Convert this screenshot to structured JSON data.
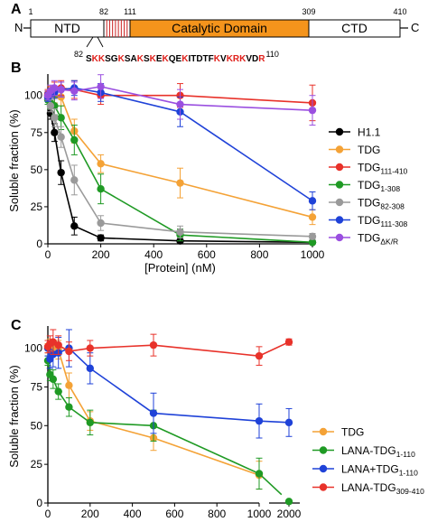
{
  "panel_a": {
    "label": "A",
    "n_term": "N",
    "c_term": "C",
    "positions": [
      "1",
      "82",
      "111",
      "309",
      "410"
    ],
    "domains": [
      {
        "name": "NTD",
        "start": 1,
        "end": 82,
        "color": "#ffffff"
      },
      {
        "name": "",
        "start": 82,
        "end": 111,
        "color": "#ffffff",
        "hatch_color": "#cc2222"
      },
      {
        "name": "Catalytic Domain",
        "start": 111,
        "end": 309,
        "color": "#f4941c"
      },
      {
        "name": "CTD",
        "start": 309,
        "end": 410,
        "color": "#ffffff"
      }
    ],
    "sequence_start": "82",
    "sequence_end": "110",
    "sequence": [
      {
        "t": "S",
        "c": "#000000"
      },
      {
        "t": "KK",
        "c": "#e0201b"
      },
      {
        "t": "SG",
        "c": "#000000"
      },
      {
        "t": "K",
        "c": "#e0201b"
      },
      {
        "t": "SA",
        "c": "#000000"
      },
      {
        "t": "K",
        "c": "#e0201b"
      },
      {
        "t": "S",
        "c": "#000000"
      },
      {
        "t": "K",
        "c": "#e0201b"
      },
      {
        "t": "E",
        "c": "#000000"
      },
      {
        "t": "K",
        "c": "#e0201b"
      },
      {
        "t": "QE",
        "c": "#000000"
      },
      {
        "t": "K",
        "c": "#e0201b"
      },
      {
        "t": "ITDTF",
        "c": "#000000"
      },
      {
        "t": "K",
        "c": "#e0201b"
      },
      {
        "t": "V",
        "c": "#000000"
      },
      {
        "t": "KRK",
        "c": "#e0201b"
      },
      {
        "t": "VD",
        "c": "#000000"
      },
      {
        "t": "R",
        "c": "#e0201b"
      }
    ]
  },
  "chart_data": [
    {
      "panel": "B",
      "type": "line",
      "xlabel": "[Protein] (nM)",
      "ylabel": "Soluble fraction (%)",
      "xlim": [
        0,
        1000
      ],
      "ylim": [
        0,
        112
      ],
      "xticks": [
        0,
        200,
        400,
        600,
        800,
        1000
      ],
      "yticks": [
        0,
        25,
        50,
        75,
        100
      ],
      "legend_position": "right",
      "series": [
        {
          "name": "H1.1",
          "color": "#000000",
          "x": [
            0,
            10,
            25,
            50,
            100,
            200,
            500,
            1000
          ],
          "y": [
            100,
            88,
            75,
            48,
            12,
            4,
            2,
            1
          ],
          "err": [
            3,
            4,
            6,
            8,
            6,
            2,
            2,
            1
          ]
        },
        {
          "name": "TDG",
          "color": "#f4a236",
          "x": [
            0,
            10,
            25,
            50,
            100,
            200,
            500,
            1000
          ],
          "y": [
            100,
            102,
            100,
            99,
            76,
            54,
            41,
            18
          ],
          "err": [
            3,
            4,
            5,
            6,
            8,
            6,
            10,
            5
          ]
        },
        {
          "name": "TDG",
          "sub": "111-410",
          "color": "#e8322a",
          "x": [
            0,
            10,
            25,
            50,
            100,
            200,
            500,
            1000
          ],
          "y": [
            101,
            102,
            104,
            105,
            104,
            100,
            100,
            95
          ],
          "err": [
            3,
            4,
            5,
            5,
            6,
            6,
            8,
            12
          ]
        },
        {
          "name": "TDG",
          "sub": "1-308",
          "color": "#1f9a24",
          "x": [
            0,
            10,
            25,
            50,
            100,
            200,
            500,
            1000
          ],
          "y": [
            97,
            95,
            93,
            85,
            70,
            37,
            6,
            1
          ],
          "err": [
            3,
            4,
            6,
            8,
            10,
            10,
            4,
            1
          ]
        },
        {
          "name": "TDG",
          "sub": "82-308",
          "color": "#9a9a9a",
          "x": [
            0,
            10,
            25,
            50,
            100,
            200,
            500,
            1000
          ],
          "y": [
            99,
            93,
            85,
            72,
            43,
            14,
            8,
            5
          ],
          "err": [
            3,
            4,
            6,
            7,
            10,
            5,
            4,
            2
          ]
        },
        {
          "name": "TDG",
          "sub": "111-308",
          "color": "#1f42d8",
          "x": [
            0,
            10,
            25,
            50,
            100,
            200,
            500,
            1000
          ],
          "y": [
            99,
            101,
            102,
            104,
            105,
            102,
            89,
            29
          ],
          "err": [
            3,
            3,
            4,
            5,
            5,
            6,
            10,
            6
          ]
        },
        {
          "name": "TDG",
          "sub": "ΔK/R",
          "color": "#9a4fe0",
          "x": [
            0,
            10,
            25,
            50,
            100,
            200,
            500,
            1000
          ],
          "y": [
            100,
            103,
            105,
            104,
            103,
            106,
            94,
            90
          ],
          "err": [
            3,
            4,
            5,
            5,
            6,
            8,
            10,
            10
          ]
        }
      ]
    },
    {
      "panel": "C",
      "type": "line",
      "xlabel": "[Protein] (nM)",
      "ylabel": "Soluble fraction (%)",
      "xlim": [
        0,
        1000
      ],
      "x_break": [
        1000,
        2000
      ],
      "ylim": [
        0,
        112
      ],
      "xticks": [
        0,
        200,
        400,
        600,
        800,
        1000,
        2000
      ],
      "yticks": [
        0,
        25,
        50,
        75,
        100
      ],
      "legend_position": "right",
      "series": [
        {
          "name": "TDG",
          "color": "#f4a236",
          "x": [
            0,
            10,
            25,
            50,
            100,
            200,
            500,
            1000
          ],
          "y": [
            100,
            102,
            100,
            99,
            76,
            53,
            42,
            18
          ],
          "err": [
            3,
            4,
            5,
            6,
            8,
            6,
            8,
            9
          ]
        },
        {
          "name": "LANA-TDG",
          "sub": "1-110",
          "color": "#1f9a24",
          "x": [
            0,
            10,
            25,
            50,
            100,
            200,
            500,
            1000,
            2000
          ],
          "y": [
            92,
            83,
            80,
            72,
            62,
            52,
            50,
            19,
            1
          ],
          "err": [
            3,
            4,
            6,
            5,
            6,
            8,
            10,
            10,
            1
          ]
        },
        {
          "name": "LANA+TDG",
          "sub": "1-110",
          "color": "#1f42d8",
          "x": [
            0,
            10,
            25,
            50,
            100,
            200,
            500,
            1000,
            2000
          ],
          "y": [
            100,
            93,
            96,
            97,
            100,
            87,
            58,
            53,
            52
          ],
          "err": [
            5,
            6,
            8,
            10,
            12,
            10,
            13,
            11,
            9
          ]
        },
        {
          "name": "LANA-TDG",
          "sub": "309-410",
          "color": "#e8322a",
          "x": [
            0,
            10,
            25,
            50,
            100,
            200,
            500,
            1000,
            2000
          ],
          "y": [
            101,
            103,
            104,
            102,
            98,
            100,
            102,
            95,
            104
          ],
          "err": [
            4,
            5,
            8,
            6,
            6,
            5,
            7,
            6,
            2
          ]
        }
      ]
    }
  ]
}
